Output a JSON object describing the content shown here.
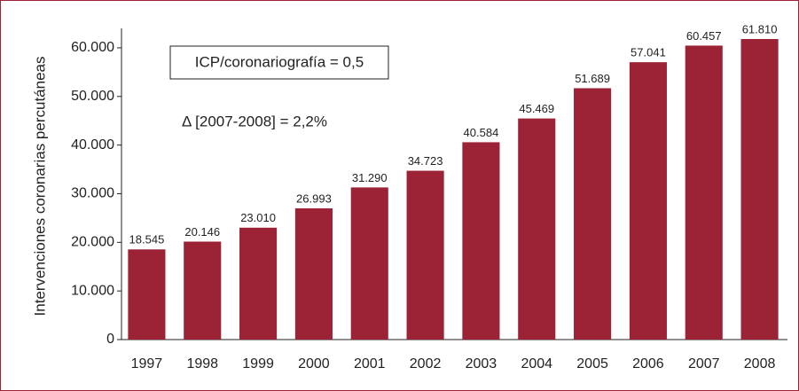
{
  "chart_data": {
    "type": "bar",
    "y_label": "Intervenciones coronarias percutáneas",
    "annotations": [
      "ICP/coronariografía = 0,5",
      "Δ [2007-2008] = 2,2%"
    ],
    "categories": [
      "1997",
      "1998",
      "1999",
      "2000",
      "2001",
      "2002",
      "2003",
      "2004",
      "2005",
      "2006",
      "2007",
      "2008"
    ],
    "values": [
      18545,
      20146,
      23010,
      26993,
      31290,
      34723,
      40584,
      45469,
      51689,
      57041,
      60457,
      61810
    ],
    "value_labels": [
      "18.545",
      "20.146",
      "23.010",
      "26.993",
      "31.290",
      "34.723",
      "40.584",
      "45.469",
      "51.689",
      "57.041",
      "60.457",
      "61.810"
    ],
    "color": "#9b2335",
    "ylim": [
      0,
      64000
    ],
    "yticks": [
      0,
      {
        "value": 10000,
        "label": "10.000"
      },
      {
        "value": 20000,
        "label": "20.000"
      },
      {
        "value": 30000,
        "label": "30.000"
      },
      {
        "value": 40000,
        "label": "40.000"
      },
      {
        "value": 50000,
        "label": "50.000"
      },
      {
        "value": 60000,
        "label": "60.000"
      }
    ],
    "grid": false
  }
}
